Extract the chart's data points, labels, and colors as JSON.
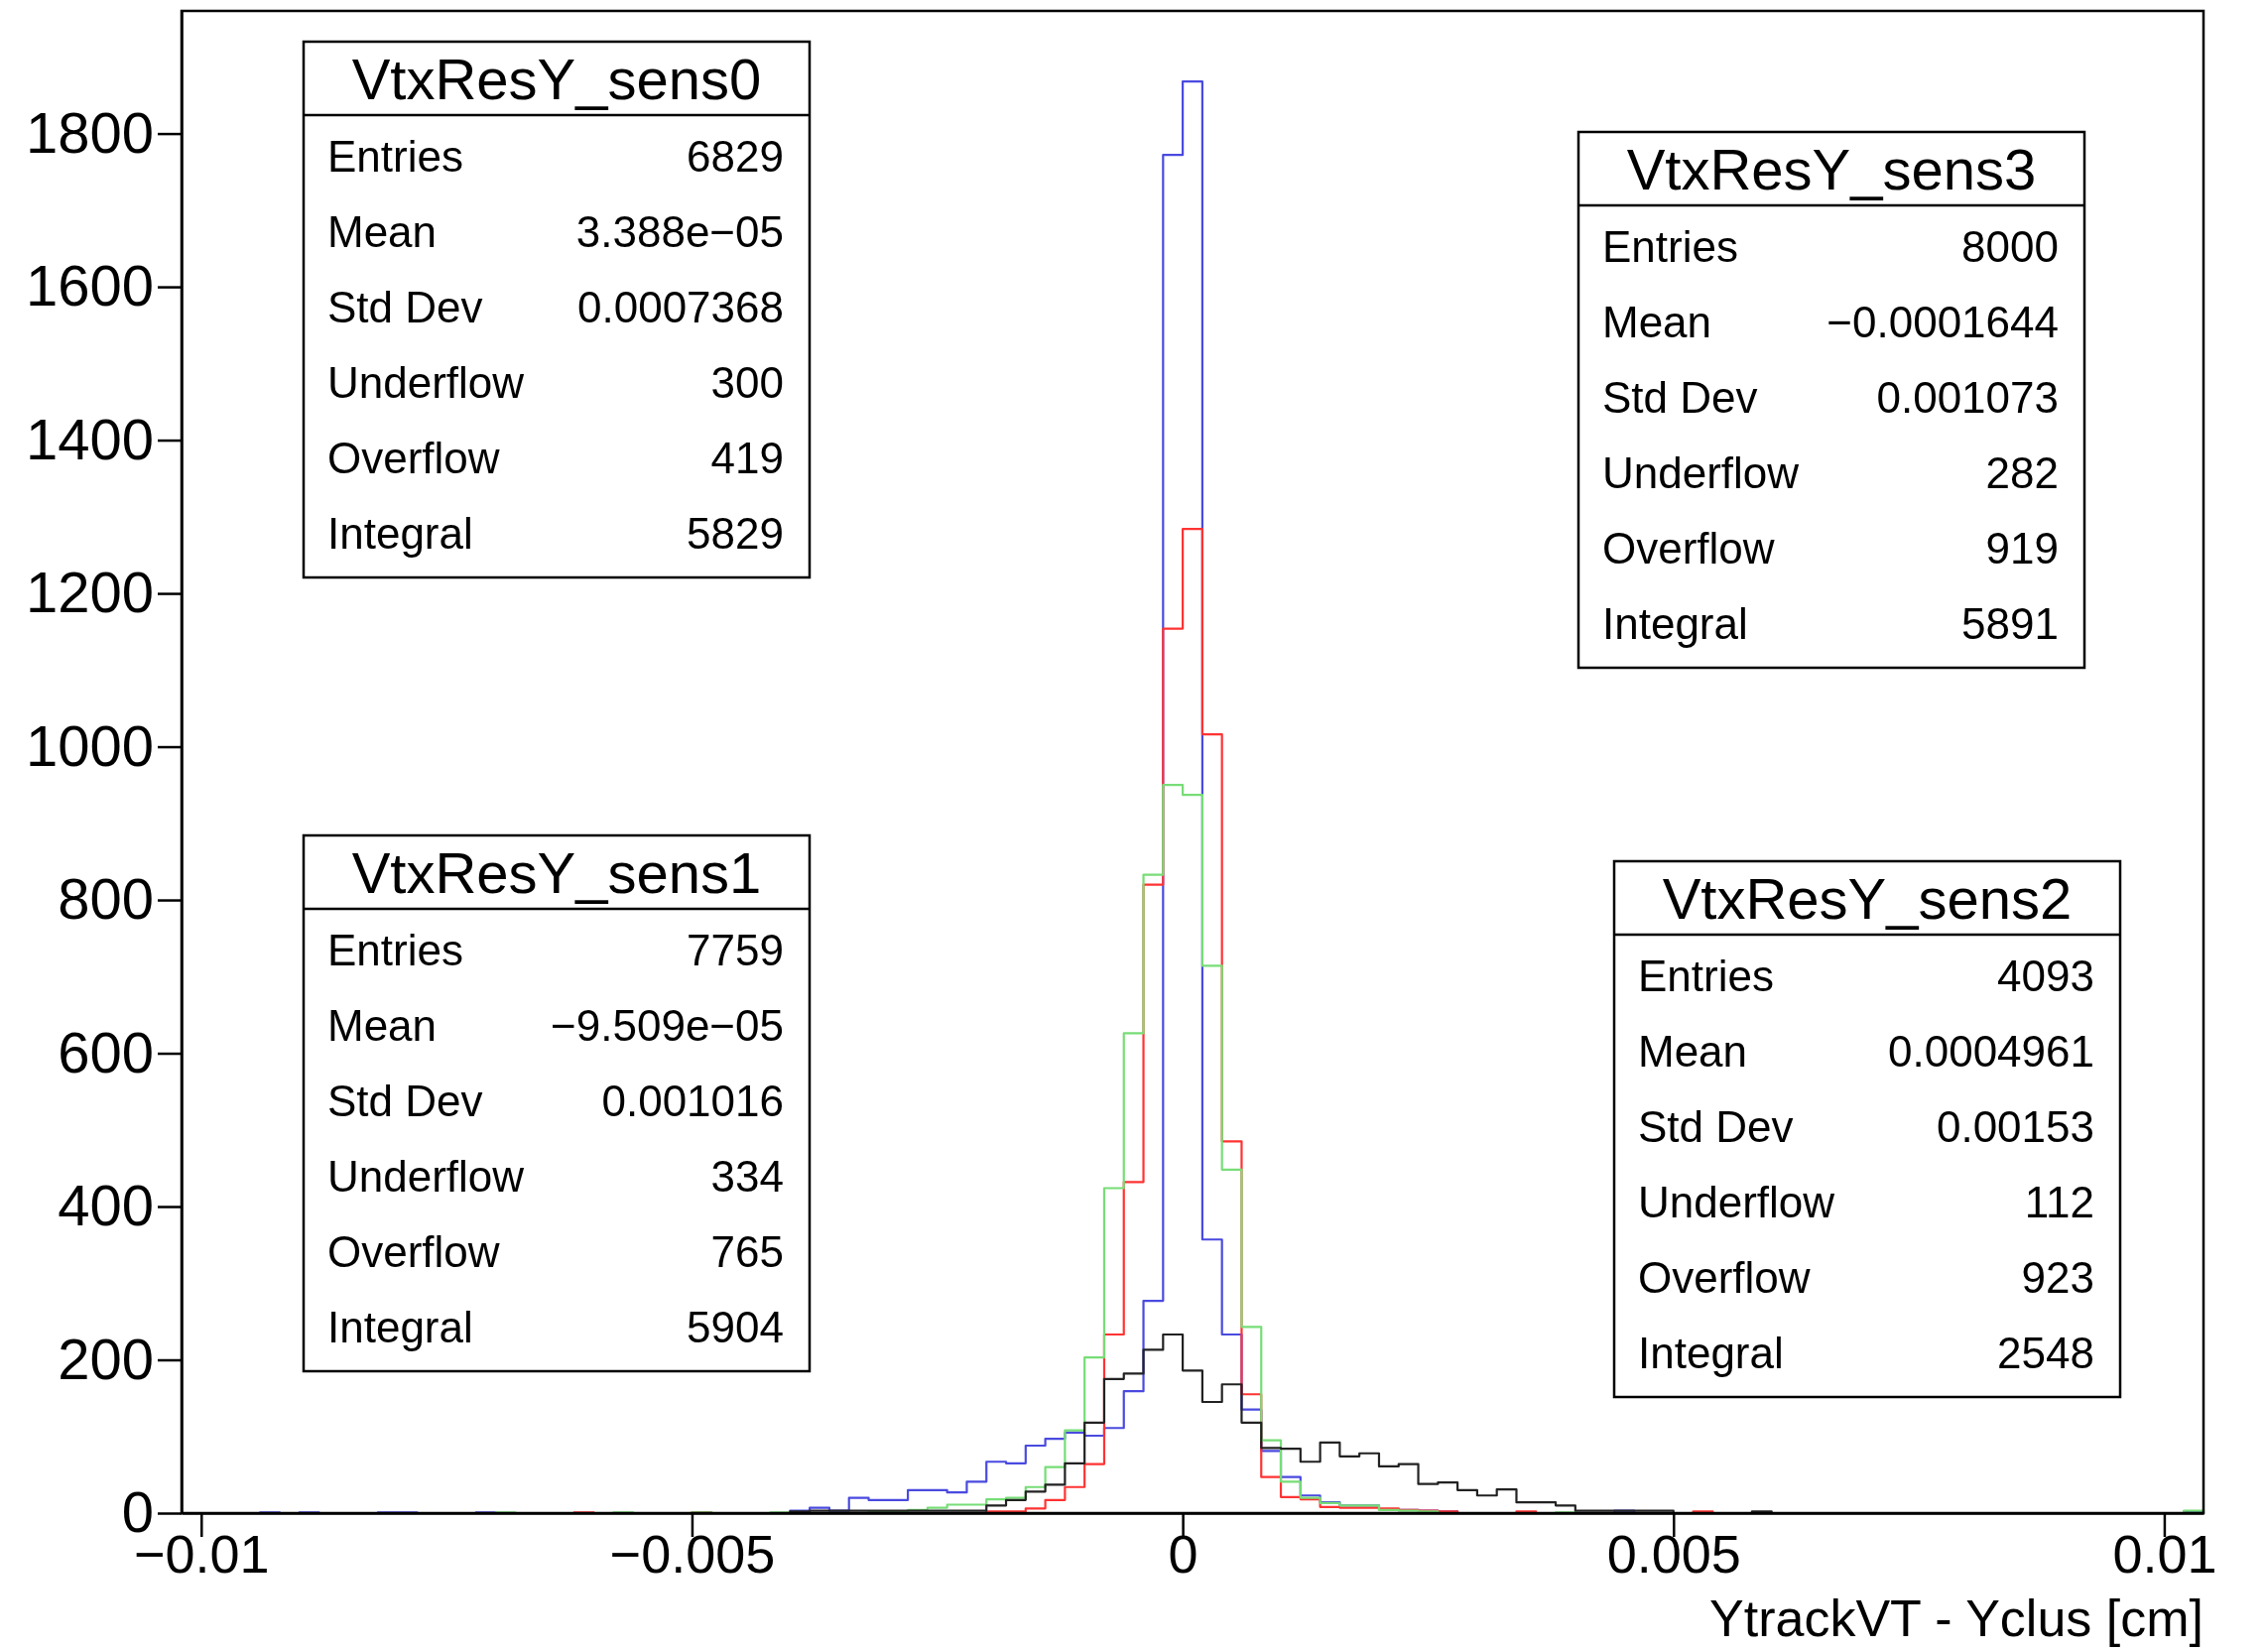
{
  "chart_data": {
    "type": "histogram",
    "xlabel": "YtrackVT - Yclus [cm]",
    "bins": [
      -0.0102,
      -0.01,
      -0.0098,
      -0.0096,
      -0.0094,
      -0.0092,
      -0.009,
      -0.0088,
      -0.0086,
      -0.0084,
      -0.0082,
      -0.008,
      -0.0078,
      -0.0076,
      -0.0074,
      -0.0072,
      -0.007,
      -0.0068,
      -0.0066,
      -0.0064,
      -0.0062,
      -0.006,
      -0.0058,
      -0.0056,
      -0.0054,
      -0.0052,
      -0.005,
      -0.0048,
      -0.0046,
      -0.0044,
      -0.0042,
      -0.004,
      -0.0038,
      -0.0036,
      -0.0034,
      -0.0032,
      -0.003,
      -0.0028,
      -0.0026,
      -0.0024,
      -0.0022,
      -0.002,
      -0.0018,
      -0.0016,
      -0.0014,
      -0.0012,
      -0.001,
      -0.0008,
      -0.0006,
      -0.0004,
      -0.0002,
      0,
      0.0002,
      0.0004,
      0.0006,
      0.0008,
      0.001,
      0.0012,
      0.0014,
      0.0016,
      0.0018,
      0.002,
      0.0022,
      0.0024,
      0.0026,
      0.0028,
      0.003,
      0.0032,
      0.0034,
      0.0036,
      0.0038,
      0.004,
      0.0042,
      0.0044,
      0.0046,
      0.0048,
      0.005,
      0.0052,
      0.0054,
      0.0056,
      0.0058,
      0.006,
      0.0062,
      0.0064,
      0.0066,
      0.0068,
      0.007,
      0.0072,
      0.0074,
      0.0076,
      0.0078,
      0.008,
      0.0082,
      0.0084,
      0.0086,
      0.0088,
      0.009,
      0.0092,
      0.0094,
      0.0096,
      0.0098,
      0.01,
      0.0102,
      0.0104
    ],
    "series": [
      {
        "color": "#4a4ae0",
        "values": [
          0,
          0,
          0,
          0,
          1,
          0,
          1,
          0,
          0,
          0,
          1,
          1,
          0,
          0,
          0,
          1,
          0,
          0,
          0,
          0,
          0,
          0,
          0,
          0,
          0,
          0,
          0,
          0,
          0,
          0,
          0,
          3,
          7,
          3,
          20,
          17,
          17,
          30,
          30,
          27,
          41,
          67,
          65,
          88,
          97,
          105,
          101,
          111,
          159,
          277,
          1772,
          1868,
          357,
          233,
          135,
          81,
          47,
          23,
          14,
          10,
          10,
          5,
          4,
          3,
          2,
          0,
          0,
          0,
          0,
          0,
          0,
          0,
          0,
          3,
          0,
          0,
          0,
          0,
          0,
          0,
          0,
          0,
          0,
          0,
          0,
          0,
          0,
          0,
          0,
          0,
          0,
          0,
          0,
          0,
          0,
          0,
          0,
          0,
          0,
          0,
          0,
          0,
          2
        ]
      },
      {
        "color": "#ff3333",
        "values": [
          0,
          0,
          0,
          0,
          0,
          0,
          0,
          0,
          0,
          0,
          0,
          0,
          0,
          0,
          0,
          0,
          0,
          0,
          0,
          0,
          1,
          0,
          0,
          0,
          0,
          0,
          1,
          0,
          0,
          0,
          0,
          0,
          0,
          0,
          0,
          0,
          0,
          0,
          0,
          0,
          0,
          2,
          2,
          6,
          17,
          34,
          64,
          233,
          432,
          820,
          1154,
          1284,
          1016,
          485,
          155,
          47,
          21,
          18,
          8,
          7,
          7,
          6,
          4,
          3,
          2,
          0,
          0,
          0,
          2,
          0,
          0,
          0,
          0,
          0,
          0,
          0,
          0,
          2,
          0,
          0,
          0,
          0,
          0,
          0,
          0,
          0,
          0,
          0,
          0,
          0,
          0,
          0,
          0,
          0,
          0,
          0,
          0,
          0,
          0,
          0,
          0,
          0,
          0
        ]
      },
      {
        "color": "#77dd77",
        "values": [
          0,
          0,
          0,
          0,
          0,
          0,
          0,
          0,
          0,
          0,
          0,
          0,
          0,
          0,
          0,
          0,
          1,
          0,
          0,
          0,
          0,
          0,
          1,
          0,
          0,
          0,
          1,
          0,
          0,
          0,
          1,
          0,
          0,
          0,
          0,
          2,
          2,
          4,
          7,
          11,
          11,
          18,
          20,
          34,
          60,
          108,
          203,
          424,
          626,
          833,
          950,
          937,
          714,
          448,
          243,
          95,
          41,
          20,
          13,
          10,
          10,
          4,
          3,
          2,
          0,
          0,
          0,
          0,
          0,
          0,
          1,
          0,
          0,
          0,
          0,
          0,
          0,
          0,
          0,
          0,
          0,
          0,
          0,
          0,
          0,
          0,
          0,
          0,
          0,
          0,
          0,
          0,
          0,
          0,
          0,
          0,
          0,
          0,
          0,
          0,
          0,
          0,
          3
        ]
      },
      {
        "color": "#222222",
        "values": [
          0,
          0,
          0,
          0,
          0,
          0,
          0,
          0,
          0,
          0,
          0,
          0,
          0,
          0,
          0,
          0,
          0,
          0,
          0,
          0,
          0,
          0,
          0,
          0,
          0,
          0,
          0,
          0,
          0,
          0,
          0,
          2,
          3,
          3,
          3,
          3,
          3,
          3,
          3,
          3,
          3,
          10,
          17,
          28,
          37,
          65,
          118,
          175,
          182,
          213,
          233,
          186,
          145,
          168,
          118,
          85,
          84,
          67,
          92,
          74,
          78,
          61,
          64,
          38,
          40,
          30,
          23,
          31,
          14,
          14,
          10,
          3,
          3,
          3,
          3,
          3,
          0,
          0,
          0,
          0,
          2,
          0,
          0,
          0,
          0,
          0,
          0,
          0,
          0,
          0,
          0,
          0,
          0,
          0,
          0,
          0,
          0,
          0,
          0,
          0,
          0,
          0,
          0
        ]
      }
    ],
    "xlim": [
      -0.0102,
      0.0104
    ],
    "xticks": [
      {
        "value": -0.01,
        "label": "−0.01"
      },
      {
        "value": -0.005,
        "label": "−0.005"
      },
      0,
      0.005,
      0.01
    ],
    "ylim": [
      0,
      1960
    ],
    "yticks": [
      0,
      200,
      400,
      600,
      800,
      1000,
      1200,
      1400,
      1600,
      1800
    ],
    "annotations": [
      "VtxResY_sens0",
      "Entries",
      "6829",
      "Mean",
      "3.388e−05",
      "Std Dev",
      "0.0007368",
      "Underflow",
      "300",
      "Overflow",
      "419",
      "Integral",
      "5829",
      "VtxResY_sens3",
      "Entries",
      "8000",
      "Mean",
      "−0.0001644",
      "Std Dev",
      "0.001073",
      "Underflow",
      "282",
      "Overflow",
      "919",
      "Integral",
      "5891",
      "VtxResY_sens1",
      "Entries",
      "7759",
      "Mean",
      "−9.509e−05",
      "Std Dev",
      "0.001016",
      "Underflow",
      "334",
      "Overflow",
      "765",
      "Integral",
      "5904",
      "VtxResY_sens2",
      "Entries",
      "4093",
      "Mean",
      "0.0004961",
      "Std Dev",
      "0.00153",
      "Underflow",
      "112",
      "Overflow",
      "923",
      "Integral",
      "2548"
    ]
  }
}
